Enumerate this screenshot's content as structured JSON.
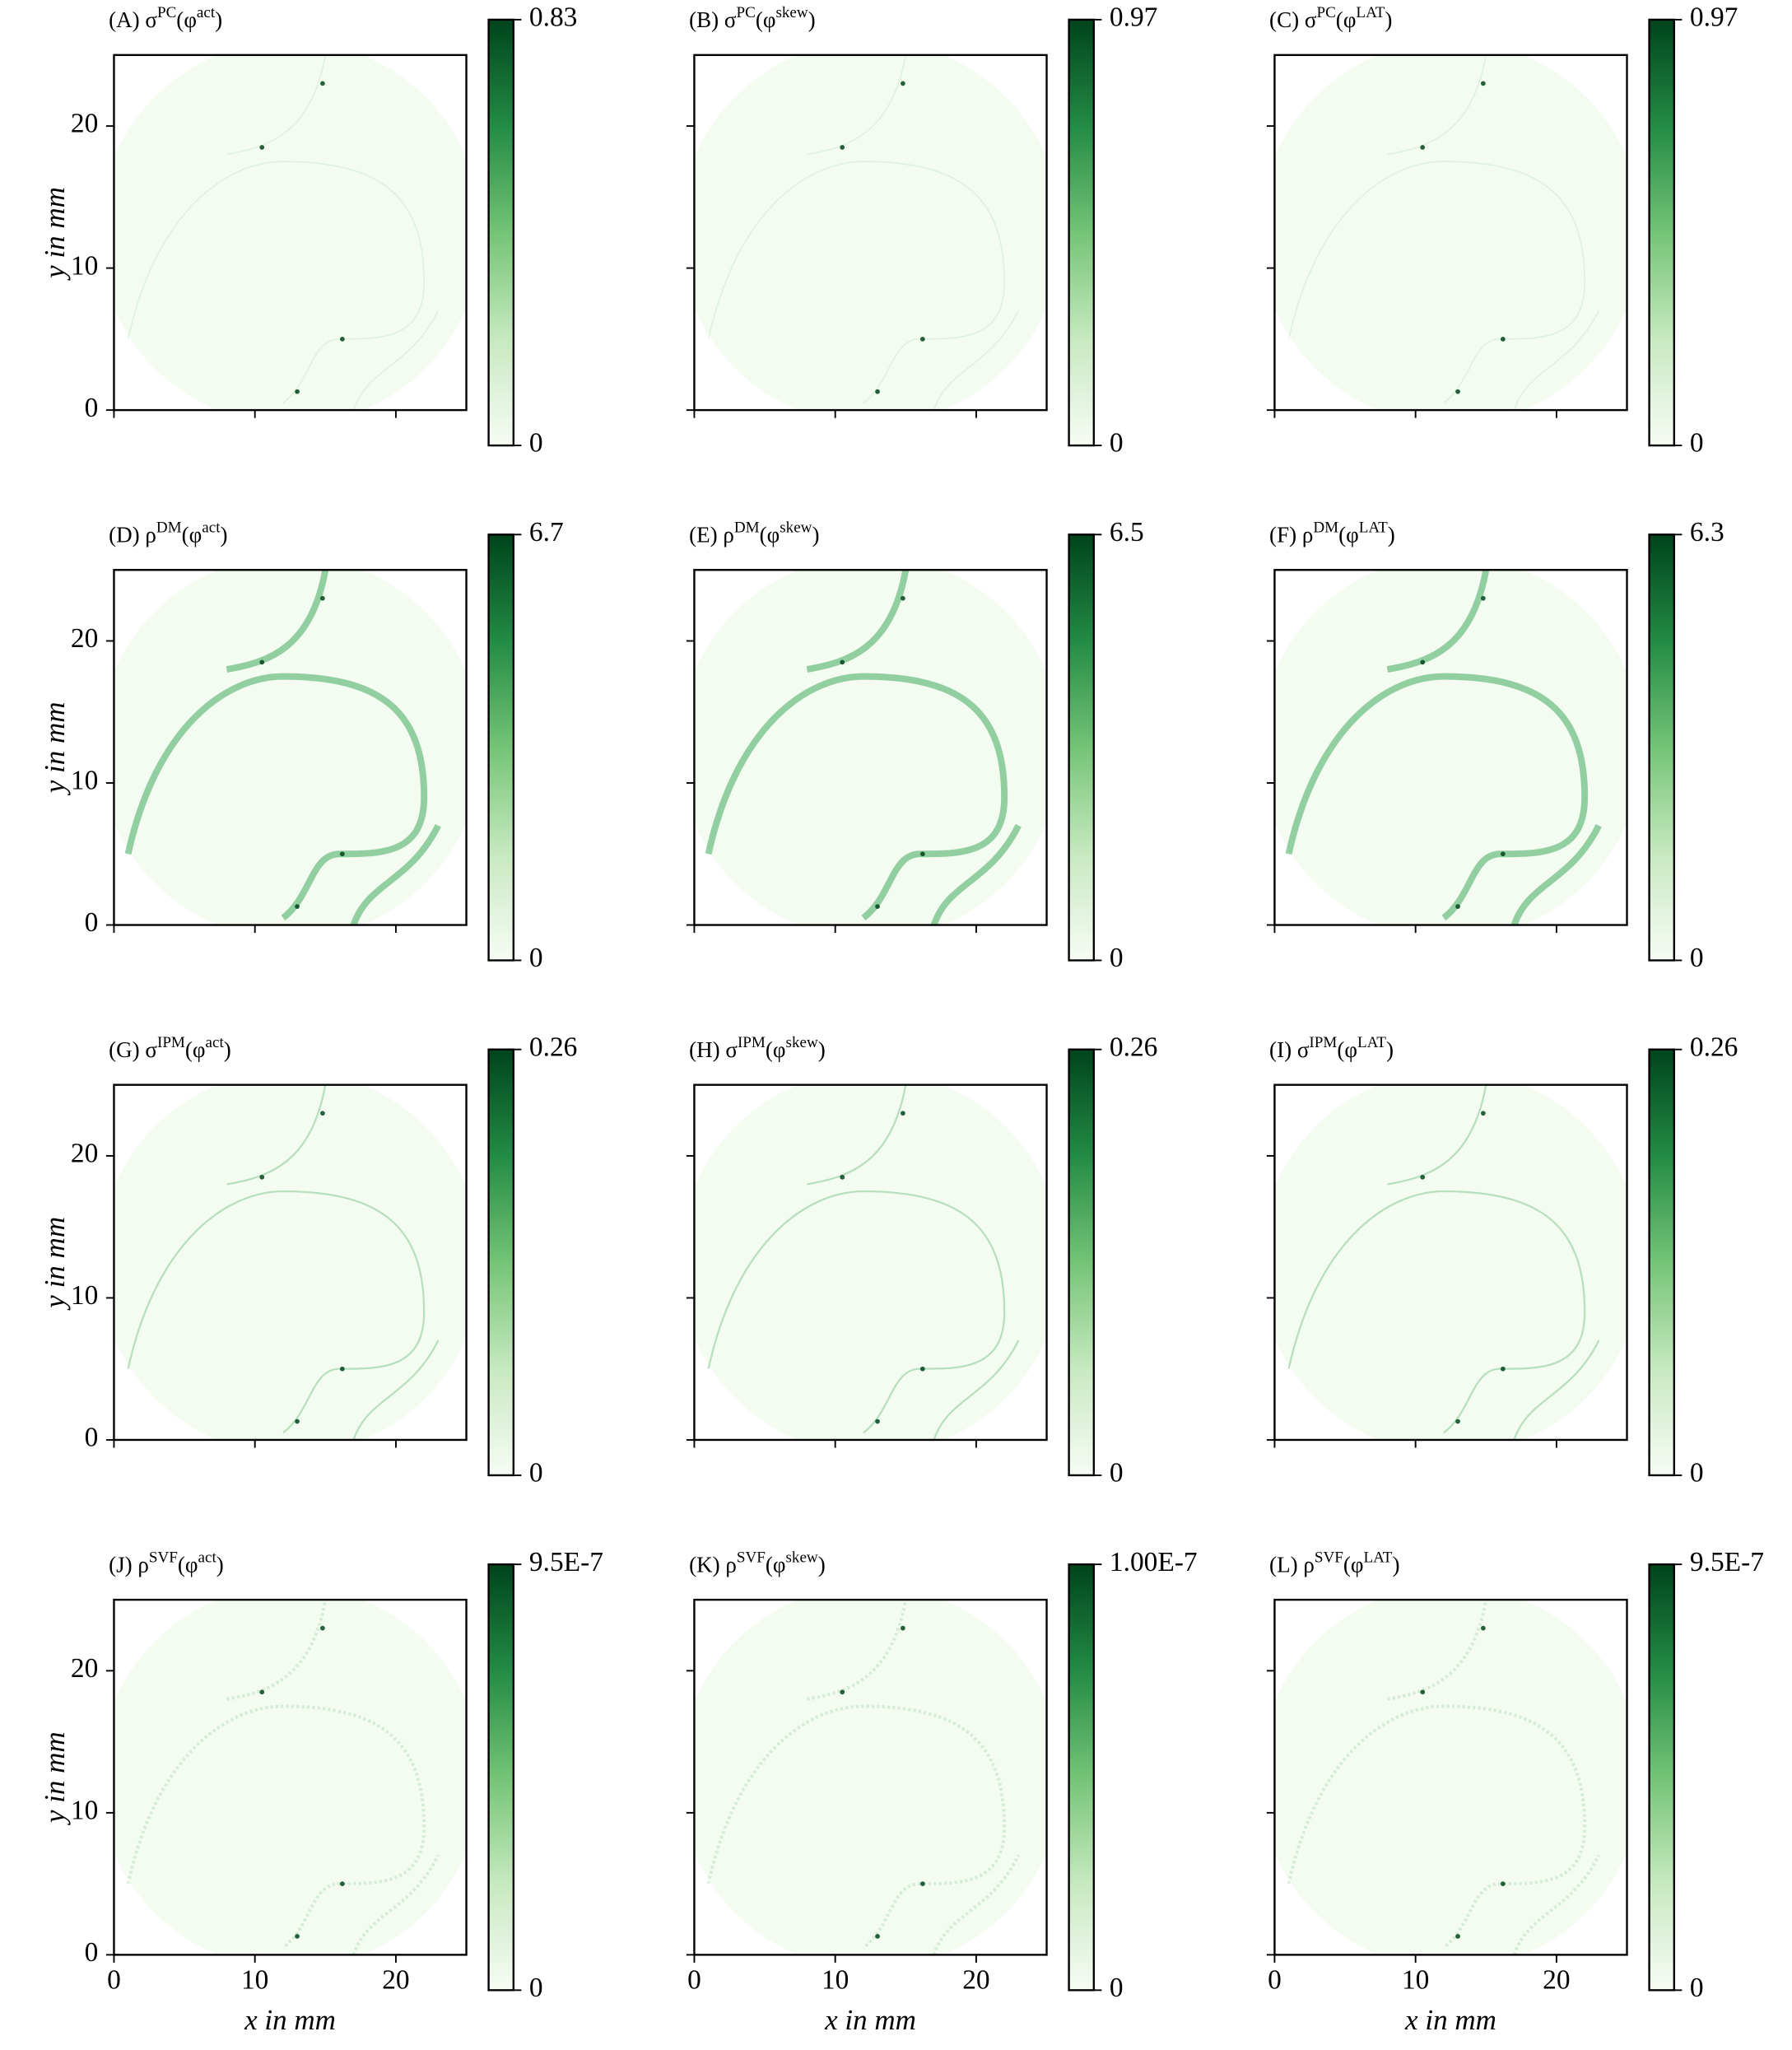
{
  "chart_data": [
    {
      "type": "heatmap",
      "title_parts": [
        {
          "text": "(A) σ"
        },
        {
          "text": "PC",
          "sup": true
        },
        {
          "text": "(φ"
        },
        {
          "text": "act",
          "sup": true
        },
        {
          "text": ")"
        }
      ],
      "xlim": [
        0,
        25
      ],
      "ylim": [
        0,
        25
      ],
      "xticks": [
        0,
        10,
        20
      ],
      "yticks": [
        0,
        10,
        20
      ],
      "show_xticklabels": false,
      "show_yticklabels": true,
      "ylabel": "y in mm",
      "colorbar": {
        "lim": [
          0,
          0.83
        ],
        "ticks": [
          0,
          0.83
        ]
      }
    },
    {
      "type": "heatmap",
      "title_parts": [
        {
          "text": "(B) σ"
        },
        {
          "text": "PC",
          "sup": true
        },
        {
          "text": "(φ"
        },
        {
          "text": "skew",
          "sup": true
        },
        {
          "text": ")"
        }
      ],
      "xlim": [
        0,
        25
      ],
      "ylim": [
        0,
        25
      ],
      "xticks": [
        0,
        10,
        20
      ],
      "yticks": [
        0,
        10,
        20
      ],
      "show_xticklabels": false,
      "show_yticklabels": false,
      "colorbar": {
        "lim": [
          0,
          0.97
        ],
        "ticks": [
          0,
          0.97
        ]
      }
    },
    {
      "type": "heatmap",
      "title_parts": [
        {
          "text": "(C) σ"
        },
        {
          "text": "PC",
          "sup": true
        },
        {
          "text": "(φ"
        },
        {
          "text": "LAT",
          "sup": true
        },
        {
          "text": ")"
        }
      ],
      "xlim": [
        0,
        25
      ],
      "ylim": [
        0,
        25
      ],
      "xticks": [
        0,
        10,
        20
      ],
      "yticks": [
        0,
        10,
        20
      ],
      "show_xticklabels": false,
      "show_yticklabels": false,
      "colorbar": {
        "lim": [
          0,
          0.97
        ],
        "ticks": [
          0,
          0.97
        ]
      }
    },
    {
      "type": "heatmap",
      "title_parts": [
        {
          "text": "(D) ρ"
        },
        {
          "text": "DM",
          "sup": true
        },
        {
          "text": "(φ"
        },
        {
          "text": "act",
          "sup": true
        },
        {
          "text": ")"
        }
      ],
      "xlim": [
        0,
        25
      ],
      "ylim": [
        0,
        25
      ],
      "xticks": [
        0,
        10,
        20
      ],
      "yticks": [
        0,
        10,
        20
      ],
      "show_xticklabels": false,
      "show_yticklabels": true,
      "ylabel": "y in mm",
      "colorbar": {
        "lim": [
          0,
          6.7
        ],
        "ticks": [
          0,
          6.7
        ]
      }
    },
    {
      "type": "heatmap",
      "title_parts": [
        {
          "text": "(E) ρ"
        },
        {
          "text": "DM",
          "sup": true
        },
        {
          "text": "(φ"
        },
        {
          "text": "skew",
          "sup": true
        },
        {
          "text": ")"
        }
      ],
      "xlim": [
        0,
        25
      ],
      "ylim": [
        0,
        25
      ],
      "xticks": [
        0,
        10,
        20
      ],
      "yticks": [
        0,
        10,
        20
      ],
      "show_xticklabels": false,
      "show_yticklabels": false,
      "colorbar": {
        "lim": [
          0,
          6.5
        ],
        "ticks": [
          0,
          6.5
        ]
      }
    },
    {
      "type": "heatmap",
      "title_parts": [
        {
          "text": "(F) ρ"
        },
        {
          "text": "DM",
          "sup": true
        },
        {
          "text": "(φ"
        },
        {
          "text": "LAT",
          "sup": true
        },
        {
          "text": ")"
        }
      ],
      "xlim": [
        0,
        25
      ],
      "ylim": [
        0,
        25
      ],
      "xticks": [
        0,
        10,
        20
      ],
      "yticks": [
        0,
        10,
        20
      ],
      "show_xticklabels": false,
      "show_yticklabels": false,
      "colorbar": {
        "lim": [
          0,
          6.3
        ],
        "ticks": [
          0,
          6.3
        ]
      }
    },
    {
      "type": "heatmap",
      "title_parts": [
        {
          "text": "(G) σ"
        },
        {
          "text": "IPM",
          "sup": true
        },
        {
          "text": "(φ"
        },
        {
          "text": "act",
          "sup": true
        },
        {
          "text": ")"
        }
      ],
      "xlim": [
        0,
        25
      ],
      "ylim": [
        0,
        25
      ],
      "xticks": [
        0,
        10,
        20
      ],
      "yticks": [
        0,
        10,
        20
      ],
      "show_xticklabels": false,
      "show_yticklabels": true,
      "ylabel": "y in mm",
      "colorbar": {
        "lim": [
          0,
          0.26
        ],
        "ticks": [
          0,
          0.26
        ]
      }
    },
    {
      "type": "heatmap",
      "title_parts": [
        {
          "text": "(H) σ"
        },
        {
          "text": "IPM",
          "sup": true
        },
        {
          "text": "(φ"
        },
        {
          "text": "skew",
          "sup": true
        },
        {
          "text": ")"
        }
      ],
      "xlim": [
        0,
        25
      ],
      "ylim": [
        0,
        25
      ],
      "xticks": [
        0,
        10,
        20
      ],
      "yticks": [
        0,
        10,
        20
      ],
      "show_xticklabels": false,
      "show_yticklabels": false,
      "colorbar": {
        "lim": [
          0,
          0.26
        ],
        "ticks": [
          0,
          0.26
        ]
      }
    },
    {
      "type": "heatmap",
      "title_parts": [
        {
          "text": "(I) σ"
        },
        {
          "text": "IPM",
          "sup": true
        },
        {
          "text": "(φ"
        },
        {
          "text": "LAT",
          "sup": true
        },
        {
          "text": ")"
        }
      ],
      "xlim": [
        0,
        25
      ],
      "ylim": [
        0,
        25
      ],
      "xticks": [
        0,
        10,
        20
      ],
      "yticks": [
        0,
        10,
        20
      ],
      "show_xticklabels": false,
      "show_yticklabels": false,
      "colorbar": {
        "lim": [
          0,
          0.26
        ],
        "ticks": [
          0,
          0.26
        ]
      }
    },
    {
      "type": "heatmap",
      "title_parts": [
        {
          "text": "(J) ρ"
        },
        {
          "text": "SVF",
          "sup": true
        },
        {
          "text": "(φ"
        },
        {
          "text": "act",
          "sup": true
        },
        {
          "text": ")"
        }
      ],
      "xlim": [
        0,
        25
      ],
      "ylim": [
        0,
        25
      ],
      "xticks": [
        0,
        10,
        20
      ],
      "yticks": [
        0,
        10,
        20
      ],
      "show_xticklabels": true,
      "show_yticklabels": true,
      "ylabel": "y in mm",
      "xlabel": "x in mm",
      "colorbar": {
        "lim": [
          0,
          9.5e-07
        ],
        "ticks": [
          0,
          {
            "value": 9.5e-07,
            "label": "9.5E-7"
          }
        ]
      }
    },
    {
      "type": "heatmap",
      "title_parts": [
        {
          "text": "(K) ρ"
        },
        {
          "text": "SVF",
          "sup": true
        },
        {
          "text": "(φ"
        },
        {
          "text": "skew",
          "sup": true
        },
        {
          "text": ")"
        }
      ],
      "xlim": [
        0,
        25
      ],
      "ylim": [
        0,
        25
      ],
      "xticks": [
        0,
        10,
        20
      ],
      "yticks": [
        0,
        10,
        20
      ],
      "show_xticklabels": true,
      "show_yticklabels": false,
      "xlabel": "x in mm",
      "colorbar": {
        "lim": [
          0,
          1e-07
        ],
        "ticks": [
          0,
          {
            "value": 1e-07,
            "label": "1.00E-7"
          }
        ]
      }
    },
    {
      "type": "heatmap",
      "title_parts": [
        {
          "text": "(L) ρ"
        },
        {
          "text": "SVF",
          "sup": true
        },
        {
          "text": "(φ"
        },
        {
          "text": "LAT",
          "sup": true
        },
        {
          "text": ")"
        }
      ],
      "xlim": [
        0,
        25
      ],
      "ylim": [
        0,
        25
      ],
      "xticks": [
        0,
        10,
        20
      ],
      "yticks": [
        0,
        10,
        20
      ],
      "show_xticklabels": true,
      "show_yticklabels": false,
      "xlabel": "x in mm",
      "colorbar": {
        "lim": [
          0,
          9.5e-07
        ],
        "ticks": [
          0,
          {
            "value": 9.5e-07,
            "label": "9.5E-7"
          }
        ]
      }
    }
  ]
}
